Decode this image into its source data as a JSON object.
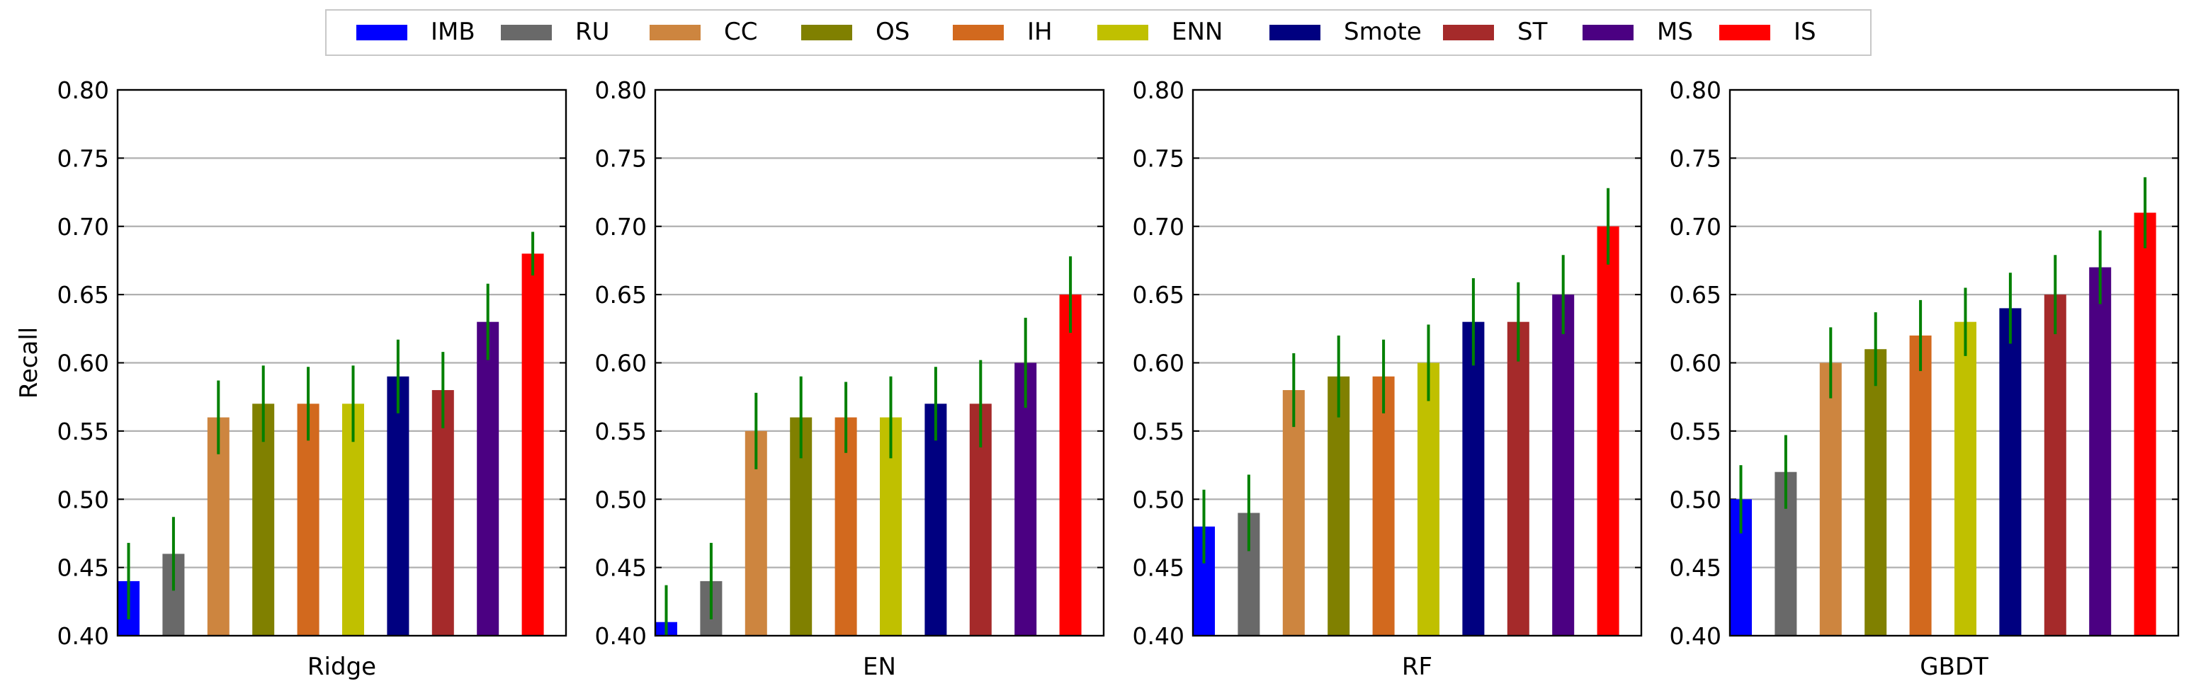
{
  "legend": [
    {
      "label": "IMB",
      "color": "#0000ff"
    },
    {
      "label": "RU",
      "color": "#696969"
    },
    {
      "label": "CC",
      "color": "#cd853f"
    },
    {
      "label": "OS",
      "color": "#808000"
    },
    {
      "label": "IH",
      "color": "#d2691e"
    },
    {
      "label": "ENN",
      "color": "#c0c000"
    },
    {
      "label": "Smote",
      "color": "#000080"
    },
    {
      "label": "ST",
      "color": "#a52a2a"
    },
    {
      "label": "MS",
      "color": "#4b0082"
    },
    {
      "label": "IS",
      "color": "#ff0000"
    }
  ],
  "error_bar_color": "#008000",
  "chart_data": [
    {
      "type": "bar",
      "xlabel": "Ridge",
      "ylabel": "Recall",
      "ylim": [
        0.4,
        0.8
      ],
      "yticks": [
        "0.40",
        "0.45",
        "0.50",
        "0.55",
        "0.60",
        "0.65",
        "0.70",
        "0.75",
        "0.80"
      ],
      "grid": true,
      "categories": [
        "IMB",
        "RU",
        "CC",
        "OS",
        "IH",
        "ENN",
        "Smote",
        "ST",
        "MS",
        "IS"
      ],
      "values": [
        0.44,
        0.46,
        0.56,
        0.57,
        0.57,
        0.57,
        0.59,
        0.58,
        0.63,
        0.68
      ],
      "errors": [
        0.028,
        0.027,
        0.027,
        0.028,
        0.027,
        0.028,
        0.027,
        0.028,
        0.028,
        0.016
      ]
    },
    {
      "type": "bar",
      "xlabel": "EN",
      "ylabel": "",
      "ylim": [
        0.4,
        0.8
      ],
      "yticks": [
        "0.40",
        "0.45",
        "0.50",
        "0.55",
        "0.60",
        "0.65",
        "0.70",
        "0.75",
        "0.80"
      ],
      "grid": true,
      "categories": [
        "IMB",
        "RU",
        "CC",
        "OS",
        "IH",
        "ENN",
        "Smote",
        "ST",
        "MS",
        "IS"
      ],
      "values": [
        0.41,
        0.44,
        0.55,
        0.56,
        0.56,
        0.56,
        0.57,
        0.57,
        0.6,
        0.65
      ],
      "errors": [
        0.027,
        0.028,
        0.028,
        0.03,
        0.026,
        0.03,
        0.027,
        0.032,
        0.033,
        0.028
      ]
    },
    {
      "type": "bar",
      "xlabel": "RF",
      "ylabel": "",
      "ylim": [
        0.4,
        0.8
      ],
      "yticks": [
        "0.40",
        "0.45",
        "0.50",
        "0.55",
        "0.60",
        "0.65",
        "0.70",
        "0.75",
        "0.80"
      ],
      "grid": true,
      "categories": [
        "IMB",
        "RU",
        "CC",
        "OS",
        "IH",
        "ENN",
        "Smote",
        "ST",
        "MS",
        "IS"
      ],
      "values": [
        0.48,
        0.49,
        0.58,
        0.59,
        0.59,
        0.6,
        0.63,
        0.63,
        0.65,
        0.7
      ],
      "errors": [
        0.027,
        0.028,
        0.027,
        0.03,
        0.027,
        0.028,
        0.032,
        0.029,
        0.029,
        0.028
      ]
    },
    {
      "type": "bar",
      "xlabel": "GBDT",
      "ylabel": "",
      "ylim": [
        0.4,
        0.8
      ],
      "yticks": [
        "0.40",
        "0.45",
        "0.50",
        "0.55",
        "0.60",
        "0.65",
        "0.70",
        "0.75",
        "0.80"
      ],
      "grid": true,
      "categories": [
        "IMB",
        "RU",
        "CC",
        "OS",
        "IH",
        "ENN",
        "Smote",
        "ST",
        "MS",
        "IS"
      ],
      "values": [
        0.5,
        0.52,
        0.6,
        0.61,
        0.62,
        0.63,
        0.64,
        0.65,
        0.67,
        0.71
      ],
      "errors": [
        0.025,
        0.027,
        0.026,
        0.027,
        0.026,
        0.025,
        0.026,
        0.029,
        0.027,
        0.026
      ]
    }
  ]
}
